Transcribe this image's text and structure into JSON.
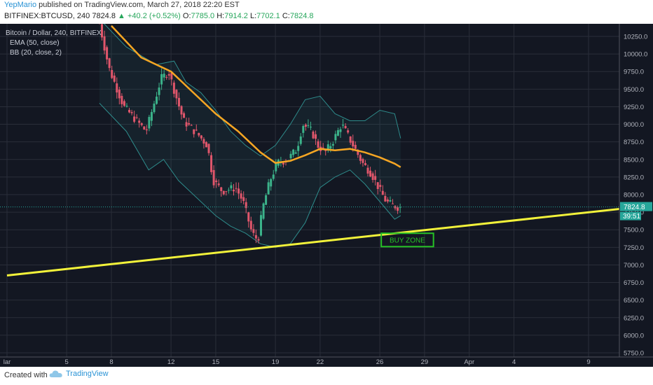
{
  "header": {
    "author": "YepMario",
    "published": "published on TradingView.com, March 27, 2018 22:20 EST",
    "symbol": "BITFINEX:BTCUSD, 240",
    "last": "7824.8",
    "change": "▲ +40.2 (+0.52%)",
    "o_label": "O:",
    "o_val": "7785.0",
    "h_label": "H:",
    "h_val": "7914.2",
    "l_label": "L:",
    "l_val": "7702.1",
    "c_label": "C:",
    "c_val": "7824.8"
  },
  "legend": {
    "main": "Bitcoin / Dollar, 240, BITFINEX",
    "ema": "EMA (50, close)",
    "bb": "BB (20, close, 2)"
  },
  "price_tag": {
    "value": "7824.8",
    "timer": "39:51"
  },
  "buy_zone_label": "BUY ZONE",
  "footer": {
    "created": "Created with",
    "brand": "TradingView"
  },
  "colors": {
    "bg": "#131722",
    "up": "#3bb38a",
    "down": "#e0566b",
    "ema": "#f5a623",
    "trend": "#f2f23a",
    "bb": "#2e8b8b",
    "buyzone": "#26c226"
  },
  "chart_data": {
    "type": "line",
    "y_ticks": [
      "10250.0",
      "10000.0",
      "9750.0",
      "9500.0",
      "9250.0",
      "9000.0",
      "8750.0",
      "8500.0",
      "8250.0",
      "8000.0",
      "7750.0",
      "7500.0",
      "7250.0",
      "7000.0",
      "6750.0",
      "6500.0",
      "6250.0",
      "6000.0",
      "5750.0"
    ],
    "ylim": [
      5750,
      10400
    ],
    "x_ticks": [
      {
        "label": "lar",
        "day": 1
      },
      {
        "label": "5",
        "day": 5
      },
      {
        "label": "8",
        "day": 8
      },
      {
        "label": "12",
        "day": 12
      },
      {
        "label": "15",
        "day": 15
      },
      {
        "label": "19",
        "day": 19
      },
      {
        "label": "22",
        "day": 22
      },
      {
        "label": "26",
        "day": 26
      },
      {
        "label": "29",
        "day": 29
      },
      {
        "label": "Apr",
        "day": 32
      },
      {
        "label": "4",
        "day": 35
      },
      {
        "label": "9",
        "day": 40
      }
    ],
    "xlim": [
      1,
      44
    ],
    "price_path": [
      [
        7.2,
        10600
      ],
      [
        8.0,
        9800
      ],
      [
        9.0,
        9250
      ],
      [
        10.5,
        8900
      ],
      [
        11.5,
        9650
      ],
      [
        12.0,
        9750
      ],
      [
        13.0,
        9050
      ],
      [
        14.0,
        8850
      ],
      [
        14.6,
        8700
      ],
      [
        15.0,
        8200
      ],
      [
        15.6,
        8050
      ],
      [
        16.5,
        8100
      ],
      [
        17.0,
        7900
      ],
      [
        17.6,
        7450
      ],
      [
        18.0,
        7350
      ],
      [
        18.3,
        7800
      ],
      [
        18.8,
        8200
      ],
      [
        19.3,
        8450
      ],
      [
        20.0,
        8500
      ],
      [
        20.6,
        8650
      ],
      [
        21.0,
        9000
      ],
      [
        21.6,
        8900
      ],
      [
        22.0,
        8700
      ],
      [
        22.5,
        8600
      ],
      [
        23.0,
        8750
      ],
      [
        23.6,
        9000
      ],
      [
        24.0,
        8850
      ],
      [
        24.5,
        8650
      ],
      [
        25.0,
        8450
      ],
      [
        25.6,
        8300
      ],
      [
        26.2,
        8050
      ],
      [
        26.6,
        7900
      ],
      [
        27.0,
        7850
      ],
      [
        27.4,
        7820
      ]
    ],
    "ema_path": [
      [
        8.0,
        10400
      ],
      [
        10.0,
        9950
      ],
      [
        12.0,
        9750
      ],
      [
        13.5,
        9450
      ],
      [
        15.0,
        9150
      ],
      [
        16.5,
        8900
      ],
      [
        18.0,
        8600
      ],
      [
        19.0,
        8450
      ],
      [
        20.0,
        8480
      ],
      [
        21.0,
        8560
      ],
      [
        22.0,
        8650
      ],
      [
        23.0,
        8630
      ],
      [
        24.0,
        8650
      ],
      [
        25.0,
        8600
      ],
      [
        26.0,
        8530
      ],
      [
        27.0,
        8440
      ],
      [
        27.4,
        8390
      ]
    ],
    "bb_upper": [
      [
        7.2,
        10500
      ],
      [
        9.0,
        10100
      ],
      [
        11.0,
        9850
      ],
      [
        12.2,
        9900
      ],
      [
        13.0,
        9600
      ],
      [
        14.0,
        9450
      ],
      [
        15.0,
        9200
      ],
      [
        16.0,
        8900
      ],
      [
        17.0,
        8700
      ],
      [
        18.0,
        8550
      ],
      [
        19.0,
        8700
      ],
      [
        20.0,
        9000
      ],
      [
        21.0,
        9350
      ],
      [
        22.0,
        9400
      ],
      [
        23.0,
        9150
      ],
      [
        24.0,
        9050
      ],
      [
        25.0,
        9050
      ],
      [
        26.0,
        9200
      ],
      [
        27.0,
        9150
      ],
      [
        27.4,
        8800
      ]
    ],
    "bb_lower": [
      [
        7.2,
        9300
      ],
      [
        9.0,
        8900
      ],
      [
        10.5,
        8350
      ],
      [
        11.5,
        8500
      ],
      [
        12.5,
        8200
      ],
      [
        13.5,
        8000
      ],
      [
        15.0,
        7700
      ],
      [
        16.0,
        7550
      ],
      [
        17.0,
        7450
      ],
      [
        18.0,
        7300
      ],
      [
        19.0,
        7250
      ],
      [
        20.0,
        7300
      ],
      [
        21.0,
        7600
      ],
      [
        22.0,
        8100
      ],
      [
        23.0,
        8250
      ],
      [
        24.0,
        8350
      ],
      [
        25.0,
        8150
      ],
      [
        26.0,
        7900
      ],
      [
        27.0,
        7650
      ],
      [
        27.4,
        7700
      ]
    ],
    "trendline": [
      [
        1,
        6850
      ],
      [
        44,
        7840
      ]
    ],
    "buy_zone": {
      "x0": 26.1,
      "x1": 29.6,
      "y0": 7450,
      "y1": 7260
    },
    "last_price": 7824.8
  }
}
